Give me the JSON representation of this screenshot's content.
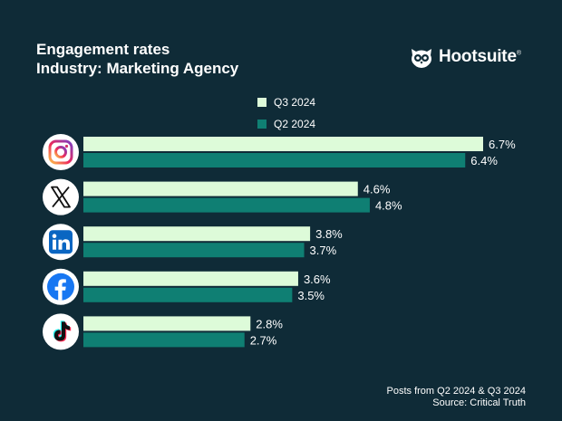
{
  "header": {
    "title_line1": "Engagement rates",
    "title_line2": "Industry: Marketing Agency"
  },
  "brand": {
    "name": "Hootsuite",
    "mark": "®"
  },
  "chart_data": {
    "type": "bar",
    "orientation": "horizontal",
    "title": "Engagement rates",
    "subtitle": "Industry: Marketing Agency",
    "unit": "%",
    "categories": [
      "Instagram",
      "X",
      "LinkedIn",
      "Facebook",
      "TikTok"
    ],
    "series": [
      {
        "name": "Q3 2024",
        "color": "#ddfbd9",
        "values": [
          6.7,
          4.6,
          3.8,
          3.6,
          2.8
        ],
        "labels": [
          "6.7%",
          "4.6%",
          "3.8%",
          "3.6%",
          "2.8%"
        ]
      },
      {
        "name": "Q2 2024",
        "color": "#0f7f73",
        "values": [
          6.4,
          4.8,
          3.7,
          3.5,
          2.7
        ],
        "labels": [
          "6.4%",
          "4.8%",
          "3.7%",
          "3.5%",
          "2.7%"
        ]
      }
    ],
    "xlim": [
      0,
      6.7
    ],
    "grid": false,
    "legend_position": "top-center"
  },
  "icons": [
    "instagram-icon",
    "x-icon",
    "linkedin-icon",
    "facebook-icon",
    "tiktok-icon"
  ],
  "footer": {
    "line1": "Posts from Q2 2024 & Q3 2024",
    "line2": "Source: Critical Truth"
  },
  "colors": {
    "background": "#0f2b37",
    "q3": "#ddfbd9",
    "q2": "#0f7f73",
    "text": "#ffffff"
  }
}
